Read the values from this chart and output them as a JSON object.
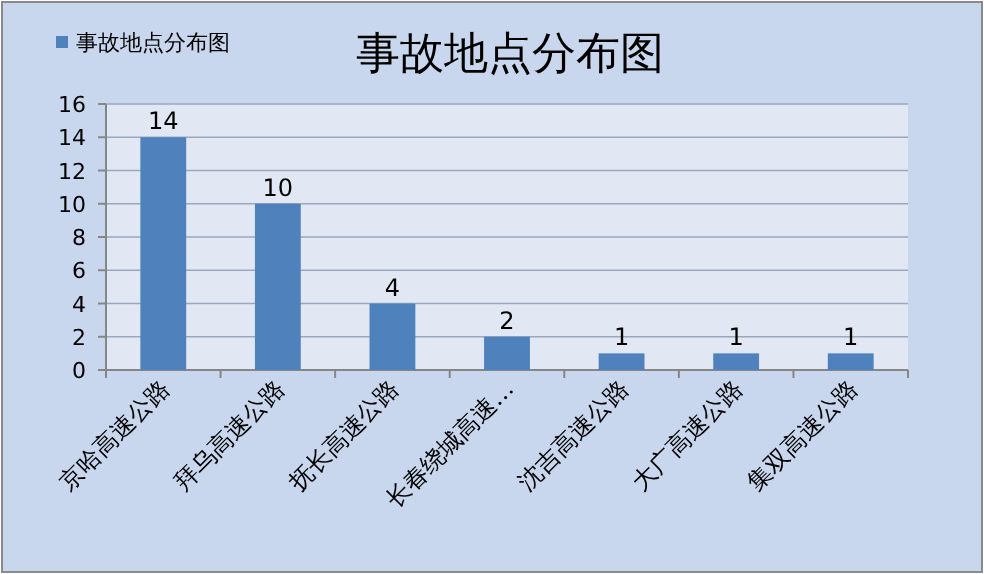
{
  "chart_data": {
    "type": "bar",
    "title": "事故地点分布图",
    "categories": [
      "京哈高速公路",
      "拜乌高速公路",
      "抚长高速公路",
      "长春绕城高速…",
      "沈吉高速公路",
      "大广高速公路",
      "集双高速公路"
    ],
    "series": [
      {
        "name": "事故地点分布图",
        "color": "#4f81bd",
        "values": [
          14,
          10,
          4,
          2,
          1,
          1,
          1
        ]
      }
    ],
    "ylim": [
      0,
      16
    ],
    "yticks": [
      0,
      2,
      4,
      6,
      8,
      10,
      12,
      14,
      16
    ],
    "grid": "y",
    "legend": "top left",
    "data_labels": true
  }
}
